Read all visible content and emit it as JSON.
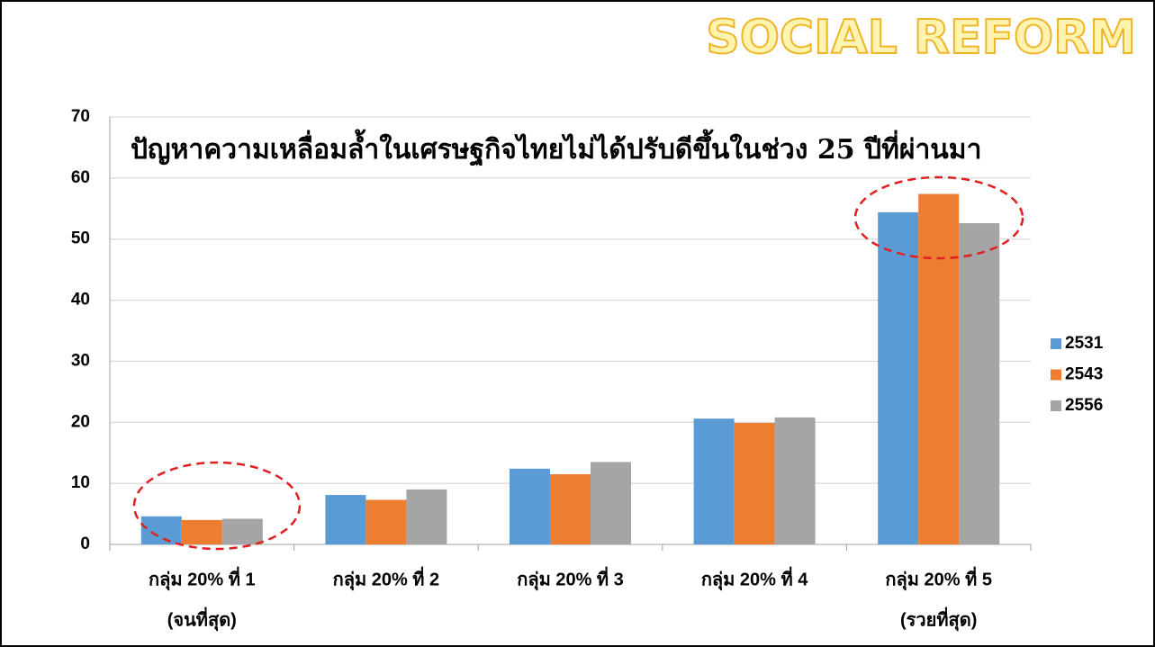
{
  "header": {
    "title": "SOCIAL REFORM"
  },
  "chart_data": {
    "type": "bar",
    "title": "ปัญหาความเหลื่อมล้ำในเศรษฐกิจไทยไม่ได้ปรับดีขึ้นในช่วง 25 ปีที่ผ่านมา",
    "categories": [
      "กลุ่ม 20% ที่ 1",
      "กลุ่ม 20% ที่ 2",
      "กลุ่ม 20% ที่ 3",
      "กลุ่ม 20% ที่ 4",
      "กลุ่ม 20% ที่ 5"
    ],
    "category_sublabels": [
      "(จนที่สุด)",
      null,
      null,
      null,
      "(รวยที่สุด)"
    ],
    "series": [
      {
        "name": "2531",
        "color": "#5b9bd5",
        "values": [
          4.6,
          8.1,
          12.4,
          20.6,
          54.4
        ]
      },
      {
        "name": "2543",
        "color": "#ed7d31",
        "values": [
          4.0,
          7.3,
          11.5,
          19.9,
          57.4
        ]
      },
      {
        "name": "2556",
        "color": "#a5a5a5",
        "values": [
          4.2,
          9.0,
          13.5,
          20.8,
          52.6
        ]
      }
    ],
    "ylim": [
      0,
      70
    ],
    "yticks": [
      0,
      10,
      20,
      30,
      40,
      50,
      60,
      70
    ],
    "grid": true,
    "legend": "right"
  }
}
